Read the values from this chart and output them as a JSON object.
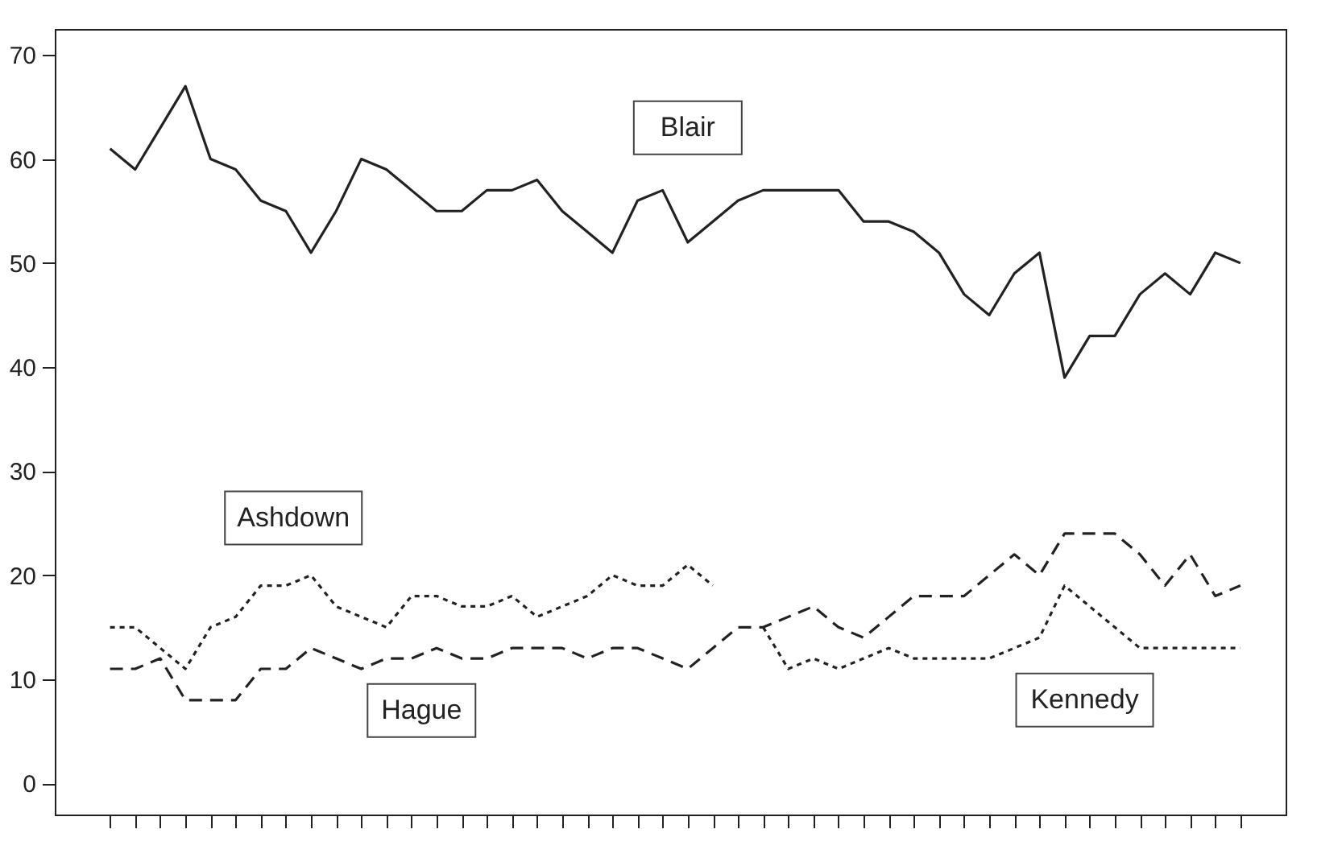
{
  "chart_data": {
    "type": "line",
    "categories": [
      null,
      null,
      null,
      null,
      null,
      null,
      null,
      null,
      null,
      null,
      null,
      null,
      null,
      null,
      null,
      null,
      null,
      null,
      null,
      null,
      null,
      null,
      null,
      null,
      null,
      null,
      null,
      null,
      null,
      null,
      null,
      null,
      null,
      null,
      null,
      null,
      null,
      null,
      null,
      null,
      null,
      null,
      null,
      null,
      null,
      null
    ],
    "series": [
      {
        "name": "Blair",
        "color": "#222222",
        "line_style": "solid",
        "values": [
          61,
          59,
          63,
          67,
          60,
          59,
          56,
          55,
          51,
          55,
          60,
          59,
          57,
          55,
          55,
          57,
          57,
          58,
          55,
          53,
          51,
          56,
          57,
          52,
          54,
          56,
          57,
          57,
          57,
          57,
          54,
          54,
          53,
          51,
          47,
          45,
          49,
          51,
          39,
          43,
          43,
          47,
          49,
          47,
          51,
          50
        ]
      },
      {
        "name": "Ashdown",
        "color": "#222222",
        "line_style": "dotted",
        "values": [
          15,
          15,
          13,
          11,
          15,
          16,
          19,
          19,
          20,
          17,
          16,
          15,
          18,
          18,
          17,
          17,
          18,
          16,
          17,
          18,
          20,
          19,
          19,
          21,
          19,
          null,
          null,
          null,
          null,
          null,
          null,
          null,
          null,
          null,
          null,
          null,
          null,
          null,
          null,
          null,
          null,
          null,
          null,
          null,
          null,
          null
        ]
      },
      {
        "name": "Hague",
        "color": "#222222",
        "line_style": "dashed",
        "values": [
          11,
          11,
          12,
          8,
          8,
          8,
          11,
          11,
          13,
          12,
          11,
          12,
          12,
          13,
          12,
          12,
          13,
          13,
          13,
          12,
          13,
          13,
          12,
          11,
          13,
          15,
          15,
          16,
          17,
          15,
          14,
          16,
          18,
          18,
          18,
          20,
          22,
          20,
          24,
          24,
          24,
          22,
          19,
          22,
          18,
          19
        ]
      },
      {
        "name": "Kennedy",
        "color": "#222222",
        "line_style": "dotted",
        "values": [
          null,
          null,
          null,
          null,
          null,
          null,
          null,
          null,
          null,
          null,
          null,
          null,
          null,
          null,
          null,
          null,
          null,
          null,
          null,
          null,
          null,
          null,
          null,
          null,
          null,
          null,
          15,
          11,
          12,
          11,
          12,
          13,
          12,
          12,
          12,
          12,
          13,
          14,
          19,
          17,
          15,
          13,
          13,
          13,
          13,
          13
        ]
      }
    ],
    "ylim": [
      -3,
      72.5
    ],
    "yticks": [
      0,
      10,
      20,
      30,
      40,
      50,
      60,
      70
    ],
    "tick_labels": "y"
  }
}
